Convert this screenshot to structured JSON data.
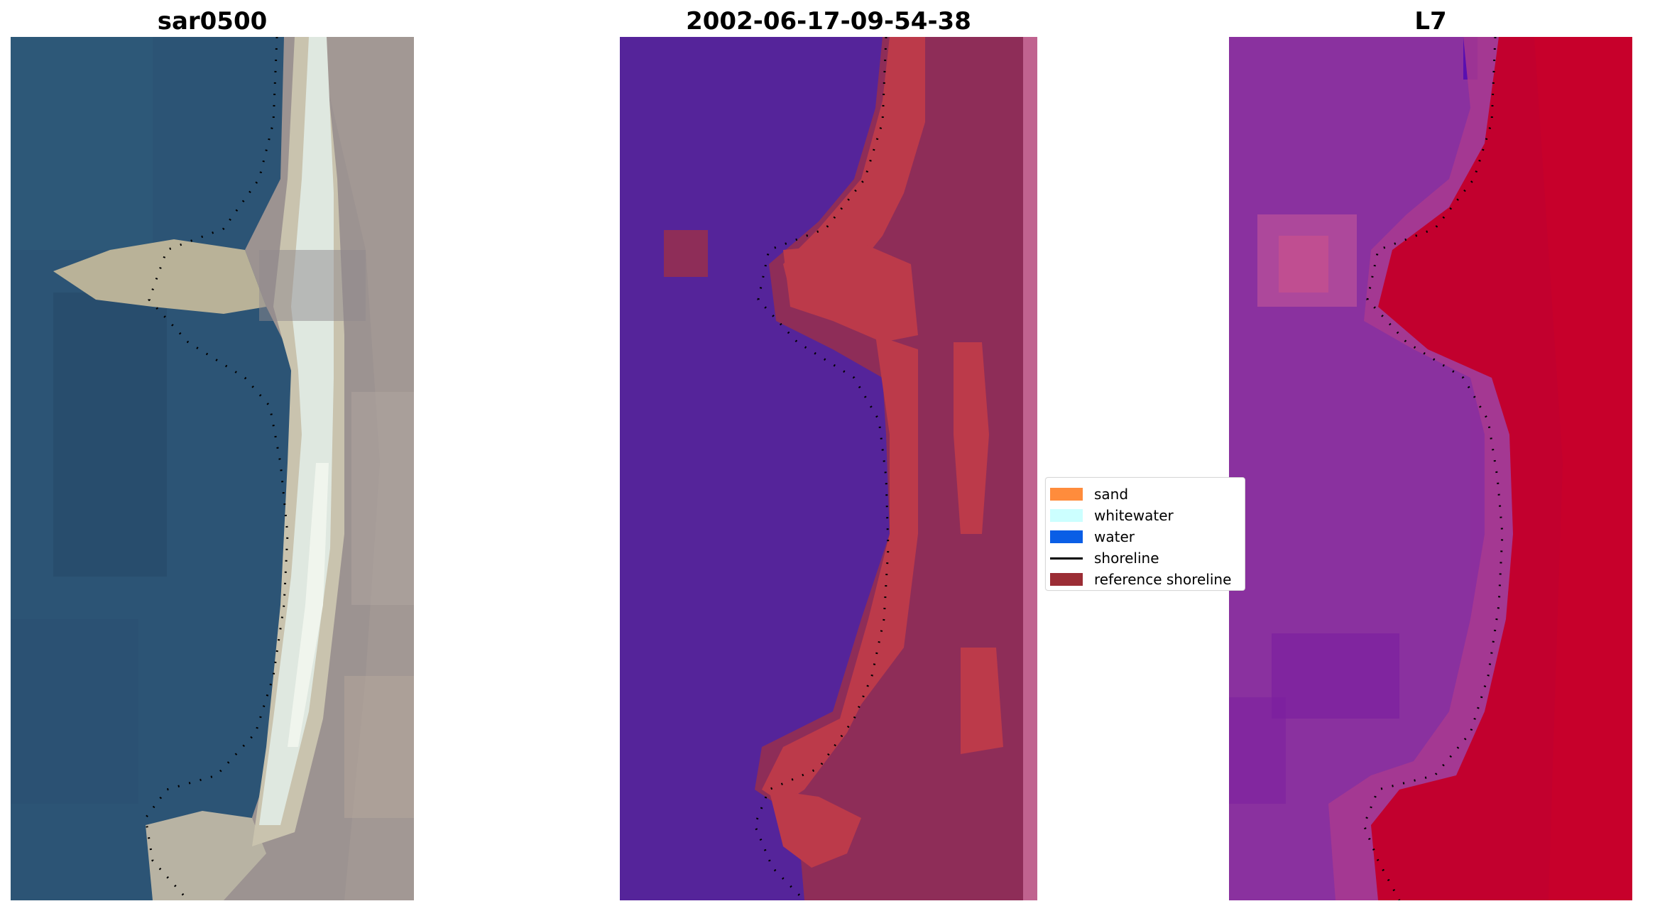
{
  "panels": {
    "rgb": {
      "title": "sar0500"
    },
    "classified": {
      "title": "2002-06-17-09-54-38"
    },
    "index": {
      "title": "L7"
    }
  },
  "legend": {
    "items": [
      {
        "key": "sand",
        "label": "sand",
        "color": "#ff8c3c"
      },
      {
        "key": "whitewater",
        "label": "whitewater",
        "color": "#ccffff"
      },
      {
        "key": "water",
        "label": "water",
        "color": "#0a5ee6"
      },
      {
        "key": "shoreline",
        "label": "shoreline",
        "color": "#000000"
      },
      {
        "key": "reference-shoreline",
        "label": "reference shoreline",
        "color": "#9b2d35"
      }
    ]
  },
  "colors": {
    "ocean": "#2c5475",
    "ocean_dark": "#264a68",
    "surf": "#d9e6df",
    "sand": "#c4bda8",
    "land": "#9c9391",
    "water_class": "#55249a",
    "land_class": "#bc3a4a",
    "land_class_dim": "#8e2d58",
    "edge_strip": "#c0638f",
    "index_water": "#8c2f9e",
    "index_land": "#c2002e"
  }
}
